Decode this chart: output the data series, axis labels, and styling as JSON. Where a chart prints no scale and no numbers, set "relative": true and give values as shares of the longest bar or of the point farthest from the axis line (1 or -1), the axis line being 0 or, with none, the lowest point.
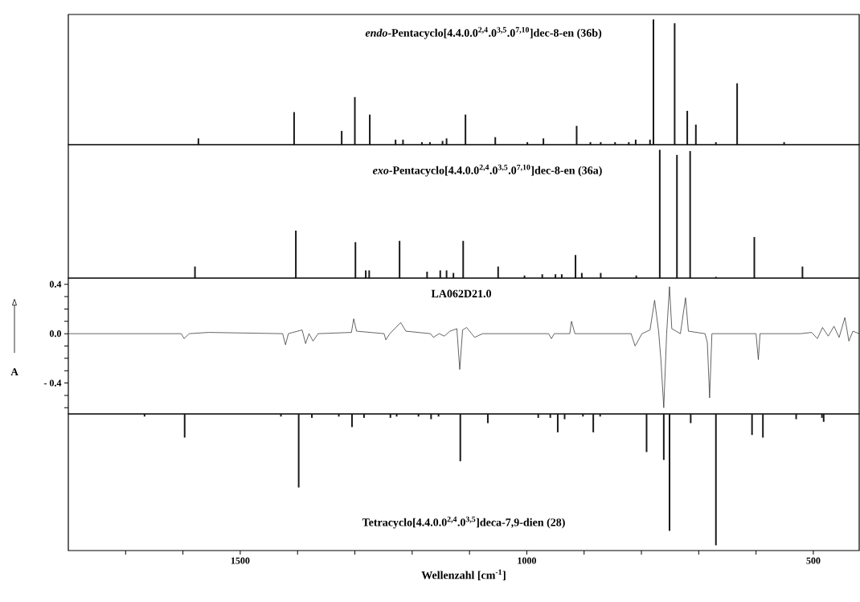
{
  "chart_data": [
    {
      "type": "bar",
      "relative": true,
      "title": "*endo*-Pentacyclo[4.4.0.0$^{2,4}$.0$^{3,5}$.0$^{7,10}$]dec-8-en (36b)",
      "xlim": [
        1800,
        420
      ],
      "tick_labels": false,
      "color": "#1a1a1a",
      "x": [
        1573,
        1406,
        1323,
        1300,
        1274,
        1229,
        1216,
        1183,
        1169,
        1147,
        1140,
        1107,
        1055,
        999,
        971,
        913,
        889,
        871,
        846,
        822,
        810,
        785,
        779,
        742,
        720,
        705,
        670,
        633,
        551
      ],
      "values": [
        0.05,
        0.26,
        0.11,
        0.38,
        0.24,
        0.04,
        0.04,
        0.02,
        0.02,
        0.03,
        0.05,
        0.24,
        0.06,
        0.02,
        0.05,
        0.15,
        0.02,
        0.02,
        0.02,
        0.02,
        0.04,
        0.04,
        1.0,
        0.97,
        0.27,
        0.16,
        0.02,
        0.49,
        0.02
      ]
    },
    {
      "type": "bar",
      "relative": true,
      "title": "*exo*-Pentacyclo[4.4.0.0$^{2,4}$.0$^{3,5}$.0$^{7,10}$]dec-8-en (36a)",
      "xlim": [
        1800,
        420
      ],
      "tick_labels": false,
      "color": "#1a1a1a",
      "x": [
        1579,
        1403,
        1299,
        1281,
        1275,
        1222,
        1174,
        1151,
        1140,
        1128,
        1111,
        1050,
        1004,
        973,
        950,
        939,
        915,
        904,
        871,
        809,
        768,
        738,
        715,
        670,
        603,
        519
      ],
      "values": [
        0.09,
        0.37,
        0.28,
        0.06,
        0.06,
        0.29,
        0.05,
        0.06,
        0.06,
        0.04,
        0.29,
        0.09,
        0.02,
        0.03,
        0.03,
        0.03,
        0.18,
        0.04,
        0.04,
        0.02,
        1.0,
        0.96,
        0.99,
        0.01,
        0.32,
        0.09
      ]
    },
    {
      "type": "line",
      "title": "LA062D21.0",
      "ylabel": "A",
      "xlim": [
        1800,
        420
      ],
      "ylim": [
        -0.65,
        0.45
      ],
      "tick_labels": "y",
      "color": "#222222",
      "yticks": [
        {
          "value": -0.6,
          "label": null
        },
        {
          "value": -0.5,
          "label": null
        },
        {
          "value": -0.4,
          "label": "- 0.4"
        },
        {
          "value": -0.3,
          "label": null
        },
        {
          "value": -0.2,
          "label": null
        },
        {
          "value": -0.1,
          "label": null
        },
        {
          "value": 0,
          "label": "0.0"
        },
        {
          "value": 0.1,
          "label": null
        },
        {
          "value": 0.2,
          "label": null
        },
        {
          "value": 0.3,
          "label": null
        },
        0.4
      ],
      "x": [
        1799,
        1603,
        1598,
        1589,
        1555,
        1426,
        1421,
        1416,
        1392,
        1386,
        1380,
        1373,
        1364,
        1306,
        1302,
        1297,
        1249,
        1246,
        1239,
        1220,
        1211,
        1168,
        1163,
        1153,
        1144,
        1134,
        1122,
        1117,
        1112,
        1105,
        1091,
        1077,
        962,
        957,
        952,
        925,
        922,
        916,
        818,
        811,
        799,
        785,
        777,
        770,
        766,
        761,
        756,
        751,
        747,
        732,
        723,
        718,
        689,
        685,
        681,
        677,
        665,
        600,
        596,
        593,
        522,
        503,
        493,
        484,
        474,
        464,
        455,
        445,
        438,
        431,
        420
      ],
      "values": [
        0,
        0,
        -0.04,
        0,
        0.01,
        0,
        -0.09,
        0,
        0.03,
        -0.08,
        0,
        -0.06,
        0,
        0.01,
        0.12,
        0.02,
        0,
        -0.05,
        0,
        0.09,
        0.02,
        0,
        -0.03,
        0,
        -0.02,
        0.02,
        0.04,
        -0.29,
        0.03,
        0.05,
        -0.03,
        0,
        0,
        -0.04,
        0,
        0,
        0.1,
        0,
        0,
        -0.1,
        0,
        0.03,
        0.27,
        0.02,
        -0.21,
        -0.6,
        0,
        0.38,
        0.04,
        0,
        0.29,
        0.02,
        0,
        -0.07,
        -0.52,
        0,
        0,
        0,
        -0.21,
        0,
        0,
        0.01,
        -0.04,
        0.05,
        -0.02,
        0.06,
        -0.03,
        0.13,
        -0.06,
        0.02,
        0
      ]
    },
    {
      "type": "bar",
      "relative": true,
      "title": "Tetracyclo[4.4.0.0$^{2,4}$.0$^{3,5}$]deca-7,9-dien (28)",
      "xlabel": "Wellenzahl [cm$^{-1}$]",
      "xlim": [
        1800,
        420
      ],
      "tick_labels": "x",
      "color": "#1a1a1a",
      "xticks": [
        {
          "value": 1700,
          "label": null
        },
        {
          "value": 1600,
          "label": null
        },
        1500,
        {
          "value": 1400,
          "label": null
        },
        {
          "value": 1300,
          "label": null
        },
        {
          "value": 1200,
          "label": null
        },
        {
          "value": 1100,
          "label": null
        },
        1000,
        {
          "value": 900,
          "label": null
        },
        {
          "value": 800,
          "label": null
        },
        {
          "value": 700,
          "label": null
        },
        {
          "value": 600,
          "label": null
        },
        500
      ],
      "x": [
        1667,
        1597,
        1429,
        1398,
        1375,
        1328,
        1305,
        1284,
        1238,
        1227,
        1189,
        1167,
        1154,
        1116,
        1068,
        980,
        959,
        946,
        934,
        902,
        884,
        872,
        791,
        761,
        751,
        714,
        670,
        607,
        588,
        530,
        485,
        482
      ],
      "values": [
        -0.02,
        -0.18,
        -0.02,
        -0.56,
        -0.03,
        -0.02,
        -0.1,
        -0.03,
        -0.03,
        -0.02,
        -0.02,
        -0.04,
        -0.02,
        -0.36,
        -0.07,
        -0.03,
        -0.03,
        -0.14,
        -0.04,
        -0.02,
        -0.14,
        -0.02,
        -0.29,
        -0.35,
        -0.89,
        -0.07,
        -1.0,
        -0.16,
        -0.18,
        -0.04,
        -0.03,
        -0.06
      ]
    }
  ]
}
